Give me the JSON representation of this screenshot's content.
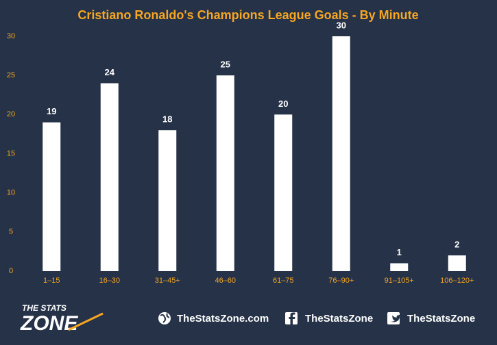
{
  "chart_data": {
    "type": "bar",
    "title": "Cristiano Ronaldo's Champions League Goals - By Minute",
    "categories": [
      "1–15",
      "16–30",
      "31–45+",
      "46–60",
      "61–75",
      "76–90+",
      "91–105+",
      "106–120+"
    ],
    "values": [
      19,
      24,
      18,
      25,
      20,
      30,
      1,
      2
    ],
    "color": "#ffffff",
    "ylim": [
      0,
      30
    ],
    "yticks": [
      0,
      5,
      10,
      15,
      20,
      25,
      30
    ],
    "grid": false
  },
  "footer": {
    "logo_top": "THE STATS",
    "logo_bottom": "ZONE",
    "website": "TheStatsZone.com",
    "facebook": "TheStatsZone",
    "twitter": "TheStatsZone"
  }
}
